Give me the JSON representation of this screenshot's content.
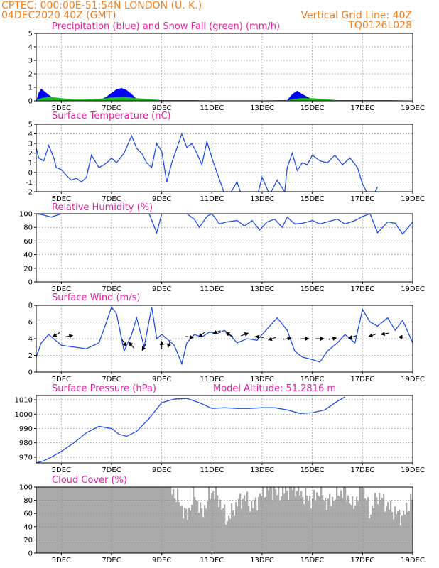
{
  "header": {
    "line1": "CPTEC:   000:00E-51:54N   LONDON (U. K.)",
    "line2": "04DEC2020 40Z (GMT)",
    "right1": "Vertical Grid Line: 40Z",
    "right2": "TQ0126L028"
  },
  "colors": {
    "header_text": "#f07d1e",
    "panel_title": "#e020a0",
    "precip": "#0000ff",
    "snow": "#22bb22",
    "line": "#1f4fe6",
    "wind_arrow": "#000000",
    "cloud": "#aaaaaa"
  },
  "x_ticks": [
    "5DEC",
    "7DEC",
    "9DEC",
    "11DEC",
    "13DEC",
    "15DEC",
    "17DEC",
    "19DEC"
  ],
  "chart_data": [
    {
      "id": "precip",
      "type": "area",
      "title": "Precipitation (blue) and Snow Fall (green) (mm/h)",
      "ylim": [
        0,
        5
      ],
      "yticks": [
        0,
        1,
        2,
        3,
        4,
        5
      ],
      "x_range_days": [
        4.0,
        19.0
      ],
      "grid": true,
      "series": [
        {
          "name": "blue",
          "x": [
            4.0,
            4.1,
            4.2,
            4.4,
            4.6,
            4.8,
            5.0,
            5.5,
            6.0,
            6.5,
            6.8,
            7.0,
            7.2,
            7.4,
            7.6,
            7.8,
            8.0,
            8.5,
            9.0,
            9.5,
            10.0,
            11.0,
            12.0,
            13.0,
            14.0,
            14.2,
            14.4,
            14.6,
            14.8,
            15.0,
            15.5,
            16.0,
            17.0,
            18.0,
            19.0
          ],
          "values": [
            0.0,
            0.6,
            0.9,
            0.6,
            0.3,
            0.15,
            0.05,
            0.0,
            0.0,
            0.05,
            0.3,
            0.6,
            0.85,
            0.95,
            0.8,
            0.5,
            0.15,
            0.0,
            0.0,
            0.0,
            0.05,
            0.0,
            0.0,
            0.0,
            0.05,
            0.5,
            0.75,
            0.5,
            0.3,
            0.1,
            0.0,
            0.0,
            0.05,
            0.0,
            0.0
          ]
        },
        {
          "name": "green",
          "x": [
            4.0,
            4.2,
            4.5,
            5.0,
            5.5,
            6.0,
            6.5,
            7.0,
            7.5,
            8.0,
            9.0,
            10.0,
            11.0,
            12.0,
            13.0,
            14.0,
            14.5,
            15.0,
            16.0,
            17.0,
            18.0,
            19.0
          ],
          "values": [
            0.05,
            0.2,
            0.3,
            0.2,
            0.1,
            0.1,
            0.15,
            0.25,
            0.3,
            0.2,
            0.05,
            0.05,
            0.03,
            0.03,
            0.03,
            0.05,
            0.2,
            0.2,
            0.05,
            0.05,
            0.05,
            0.02
          ]
        }
      ]
    },
    {
      "id": "temperature",
      "type": "line",
      "title": "Surface Temperature (nC)",
      "ylim": [
        -2,
        5
      ],
      "yticks": [
        -2,
        -1,
        0,
        1,
        2,
        3,
        4,
        5
      ],
      "grid": true,
      "series": [
        {
          "x": [
            4.0,
            4.1,
            4.3,
            4.5,
            4.7,
            4.8,
            5.0,
            5.2,
            5.4,
            5.6,
            5.8,
            6.0,
            6.2,
            6.5,
            6.7,
            6.9,
            7.0,
            7.2,
            7.5,
            7.8,
            8.0,
            8.2,
            8.4,
            8.6,
            8.8,
            9.0,
            9.2,
            9.4,
            9.6,
            9.8,
            10.0,
            10.2,
            10.4,
            10.6,
            10.8,
            11.0,
            11.2,
            11.5,
            11.7,
            12.0,
            12.2,
            12.5,
            12.8,
            13.0,
            13.3,
            13.6,
            13.9,
            14.0,
            14.2,
            14.4,
            14.6,
            14.8,
            15.0,
            15.3,
            15.6,
            15.9,
            16.2,
            16.5,
            16.8,
            17.0,
            17.2,
            17.4,
            17.6
          ],
          "values": [
            2.5,
            1.5,
            1.2,
            2.8,
            1.5,
            0.5,
            0.3,
            -0.3,
            -0.8,
            -0.6,
            -1.0,
            -0.5,
            1.8,
            0.5,
            0.8,
            1.2,
            1.5,
            1.0,
            2.0,
            3.8,
            2.5,
            2.0,
            1.0,
            0.5,
            3.0,
            2.2,
            -1.0,
            1.0,
            2.5,
            4.0,
            2.6,
            3.0,
            2.0,
            0.8,
            3.2,
            1.5,
            0.0,
            -2.2,
            -2.3,
            -1.0,
            -2.5,
            -2.3,
            -2.5,
            -0.5,
            -2.3,
            -0.8,
            -2.0,
            0.5,
            2.0,
            0.2,
            1.0,
            0.8,
            1.8,
            1.2,
            1.0,
            1.8,
            0.8,
            1.5,
            0.5,
            -1.2,
            -2.2,
            -2.5,
            -1.5
          ]
        }
      ]
    },
    {
      "id": "humidity",
      "type": "line",
      "title": "Relative Humidity (%)",
      "ylim": [
        0,
        100
      ],
      "yticks": [
        0,
        20,
        40,
        60,
        80,
        100
      ],
      "grid": true,
      "series": [
        {
          "x": [
            4.0,
            4.3,
            4.6,
            5.0,
            5.5,
            6.0,
            6.5,
            7.0,
            7.5,
            8.0,
            8.5,
            8.8,
            9.0,
            9.3,
            9.7,
            10.0,
            10.3,
            10.5,
            10.8,
            11.0,
            11.3,
            11.6,
            12.0,
            12.3,
            12.6,
            12.9,
            13.2,
            13.5,
            13.8,
            14.0,
            14.3,
            14.6,
            15.0,
            15.3,
            15.6,
            16.0,
            16.3,
            16.7,
            17.0,
            17.3,
            17.6,
            18.0,
            18.3,
            18.6,
            19.0
          ],
          "values": [
            100,
            98,
            95,
            100,
            100,
            100,
            100,
            100,
            100,
            100,
            100,
            72,
            100,
            100,
            100,
            100,
            92,
            80,
            96,
            100,
            85,
            88,
            90,
            82,
            90,
            76,
            88,
            92,
            80,
            95,
            85,
            86,
            90,
            85,
            88,
            92,
            85,
            90,
            96,
            100,
            72,
            88,
            86,
            70,
            88
          ]
        }
      ]
    },
    {
      "id": "wind",
      "type": "line",
      "title": "Surface Wind (m/s)",
      "ylim": [
        0,
        8
      ],
      "yticks": [
        0,
        2,
        4,
        6,
        8
      ],
      "grid": true,
      "series": [
        {
          "x": [
            4.0,
            4.2,
            4.5,
            5.0,
            5.5,
            6.0,
            6.5,
            6.8,
            7.0,
            7.2,
            7.5,
            7.8,
            8.0,
            8.3,
            8.6,
            8.8,
            9.0,
            9.2,
            9.5,
            9.8,
            10.0,
            10.3,
            10.6,
            10.9,
            11.2,
            11.5,
            11.8,
            12.0,
            12.4,
            12.8,
            13.0,
            13.3,
            13.6,
            14.0,
            14.3,
            14.6,
            15.0,
            15.3,
            15.6,
            16.0,
            16.3,
            16.7,
            17.0,
            17.3,
            17.6,
            18.0,
            18.3,
            18.6,
            19.0
          ],
          "values": [
            1.8,
            3.5,
            4.5,
            3.2,
            3.0,
            2.8,
            3.5,
            6.0,
            7.8,
            7.0,
            2.5,
            4.5,
            6.5,
            3.0,
            7.8,
            4.0,
            4.5,
            4.0,
            3.2,
            1.0,
            3.5,
            4.5,
            4.2,
            4.8,
            4.6,
            5.0,
            4.2,
            3.5,
            4.0,
            3.8,
            4.5,
            5.5,
            6.5,
            5.0,
            2.5,
            1.8,
            1.5,
            1.2,
            2.5,
            3.5,
            4.5,
            3.5,
            7.5,
            6.0,
            5.5,
            6.5,
            5.0,
            6.2,
            3.5
          ]
        }
      ],
      "wind_arrows": [
        {
          "x": 4.8,
          "y": 4.5,
          "angle": 210
        },
        {
          "x": 5.3,
          "y": 4.3,
          "angle": 10
        },
        {
          "x": 7.5,
          "y": 3.5,
          "angle": 300
        },
        {
          "x": 7.8,
          "y": 3.2,
          "angle": 130
        },
        {
          "x": 8.3,
          "y": 3.0,
          "angle": 240
        },
        {
          "x": 9.0,
          "y": 3.2,
          "angle": 90
        },
        {
          "x": 9.3,
          "y": 3.4,
          "angle": 250
        },
        {
          "x": 10.1,
          "y": 4.2,
          "angle": 350
        },
        {
          "x": 10.6,
          "y": 4.5,
          "angle": 220
        },
        {
          "x": 11.2,
          "y": 4.8,
          "angle": 200
        },
        {
          "x": 11.7,
          "y": 4.5,
          "angle": 150
        },
        {
          "x": 12.3,
          "y": 4.5,
          "angle": 20
        },
        {
          "x": 12.9,
          "y": 4.2,
          "angle": 170
        },
        {
          "x": 13.4,
          "y": 4.0,
          "angle": 200
        },
        {
          "x": 14.0,
          "y": 4.0,
          "angle": 10
        },
        {
          "x": 14.7,
          "y": 4.0,
          "angle": 0
        },
        {
          "x": 15.3,
          "y": 4.0,
          "angle": 0
        },
        {
          "x": 15.8,
          "y": 4.0,
          "angle": 10
        },
        {
          "x": 16.6,
          "y": 4.2,
          "angle": 200
        },
        {
          "x": 17.4,
          "y": 4.4,
          "angle": 200
        },
        {
          "x": 17.9,
          "y": 4.6,
          "angle": 190
        },
        {
          "x": 18.6,
          "y": 4.2,
          "angle": 180
        }
      ]
    },
    {
      "id": "pressure",
      "type": "line",
      "title": "Surface Pressure (hPa)",
      "annotation": "Model Altitude: 51.2816 m",
      "ylim": [
        966,
        1013
      ],
      "yticks": [
        970,
        980,
        990,
        1000,
        1010
      ],
      "grid": true,
      "series": [
        {
          "x": [
            4.0,
            4.3,
            4.6,
            5.0,
            5.5,
            6.0,
            6.5,
            7.0,
            7.3,
            7.6,
            8.0,
            8.5,
            9.0,
            9.5,
            10.0,
            10.5,
            11.0,
            11.5,
            12.0,
            12.5,
            13.0,
            13.5,
            14.0,
            14.5,
            15.0,
            15.5,
            16.0,
            16.3
          ],
          "values": [
            966,
            967.5,
            970,
            974,
            980,
            987,
            991.5,
            990,
            986,
            984.5,
            988,
            997,
            1008,
            1010.5,
            1011,
            1008,
            1004,
            1004.5,
            1004,
            1004,
            1004.5,
            1004.5,
            1003,
            1000.5,
            1001,
            1003,
            1009,
            1012
          ]
        }
      ]
    },
    {
      "id": "cloud",
      "type": "bar",
      "title": "Cloud Cover (%)",
      "ylim": [
        0,
        100
      ],
      "yticks": [
        0,
        20,
        40,
        60,
        80,
        100
      ],
      "grid": true,
      "series": [
        {
          "x": [
            4.0,
            4.5,
            5.0,
            5.5,
            6.0,
            6.5,
            7.0,
            7.5,
            8.0,
            8.5,
            9.0,
            9.3,
            9.6,
            10.0,
            10.3,
            10.6,
            11.0,
            11.3,
            11.6,
            12.0,
            12.3,
            12.6,
            13.0,
            13.3,
            13.6,
            14.0,
            14.3,
            14.6,
            15.0,
            15.3,
            15.6,
            16.0,
            16.3,
            16.6,
            17.0,
            17.3,
            17.6,
            18.0,
            18.3,
            18.6,
            19.0
          ],
          "values": [
            100,
            100,
            100,
            100,
            100,
            100,
            100,
            100,
            100,
            100,
            100,
            100,
            85,
            55,
            90,
            60,
            95,
            80,
            50,
            75,
            85,
            70,
            90,
            100,
            90,
            95,
            100,
            88,
            80,
            95,
            75,
            90,
            95,
            70,
            100,
            60,
            88,
            72,
            62,
            55,
            85
          ]
        }
      ]
    }
  ]
}
